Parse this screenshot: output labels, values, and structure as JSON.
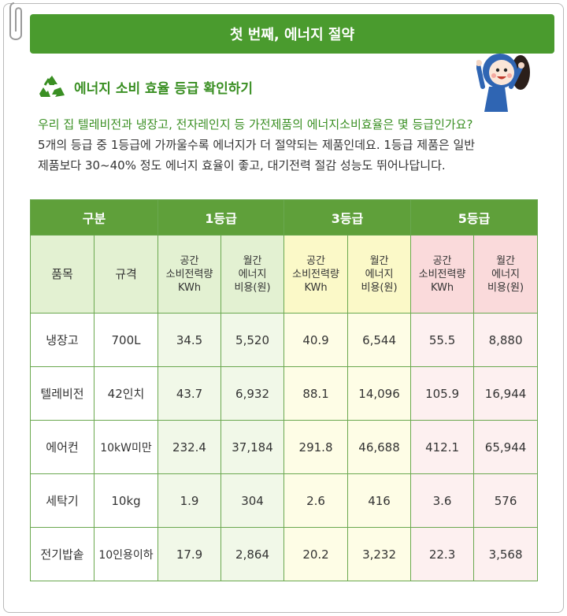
{
  "banner": {
    "title": "첫 번째, 에너지 절약"
  },
  "section": {
    "title": "에너지 소비 효율 등급 확인하기"
  },
  "intro": {
    "question": "우리 집 텔레비전과 냉장고, 전자레인지 등 가전제품의 에너지소비효율은 몇 등급인가요?",
    "line2": "5개의 등급 중 1등급에 가까울수록 에너지가 더 절약되는 제품인데요. 1등급 제품은 일반",
    "line3": "제품보다 30~40% 정도 에너지 효율이 좋고, 대기전력 절감 성능도 뛰어나답니다."
  },
  "table": {
    "group_label": "구분",
    "grades": [
      "1등급",
      "3등급",
      "5등급"
    ],
    "item_label": "품목",
    "spec_label": "규격",
    "power_label": [
      "공간",
      "소비전력량",
      "KWh"
    ],
    "cost_label": [
      "월간",
      "에너지",
      "비용(원)"
    ],
    "rows": [
      {
        "item": "냉장고",
        "spec": "700L",
        "v": [
          "34.5",
          "5,520",
          "40.9",
          "6,544",
          "55.5",
          "8,880"
        ]
      },
      {
        "item": "텔레비전",
        "spec": "42인치",
        "v": [
          "43.7",
          "6,932",
          "88.1",
          "14,096",
          "105.9",
          "16,944"
        ]
      },
      {
        "item": "에어컨",
        "spec": "10kW미만",
        "v": [
          "232.4",
          "37,184",
          "291.8",
          "46,688",
          "412.1",
          "65,944"
        ]
      },
      {
        "item": "세탁기",
        "spec": "10kg",
        "v": [
          "1.9",
          "304",
          "2.6",
          "416",
          "3.6",
          "576"
        ]
      },
      {
        "item": "전기밥솥",
        "spec": "10인용이하",
        "v": [
          "17.9",
          "2,864",
          "20.2",
          "3,232",
          "22.3",
          "3,568"
        ]
      }
    ]
  },
  "colors": {
    "accent": "#4a9b2e",
    "grade1": "#e3f1d2",
    "grade3": "#fbf9c8",
    "grade5": "#fadadb"
  },
  "icons": {
    "recycle": "recycle-icon",
    "mascot": "mascot-illustration",
    "clip": "paper-clip-icon"
  }
}
